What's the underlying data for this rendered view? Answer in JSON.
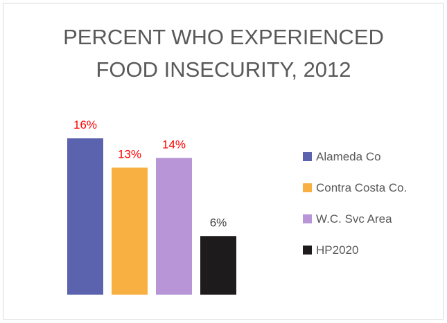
{
  "chart_data": {
    "type": "bar",
    "title_lines": [
      "PERCENT WHO EXPERIENCED",
      "FOOD INSECURITY, 2012"
    ],
    "xlabel": "",
    "ylabel": "",
    "ylim": [
      0,
      0.16
    ],
    "grid": false,
    "legend_position": "right",
    "series": [
      {
        "name": "Alameda Co",
        "value": 0.16,
        "label": "16%",
        "color": "#5b63ae",
        "label_color": "#ff0000"
      },
      {
        "name": "Contra Costa Co.",
        "value": 0.13,
        "label": "13%",
        "color": "#f9b042",
        "label_color": "#ff0000"
      },
      {
        "name": "W.C. Svc Area",
        "value": 0.14,
        "label": "14%",
        "color": "#b795d6",
        "label_color": "#ff0000"
      },
      {
        "name": "HP2020",
        "value": 0.06,
        "label": "6%",
        "color": "#1e1b1c",
        "label_color": "#404040"
      }
    ]
  }
}
